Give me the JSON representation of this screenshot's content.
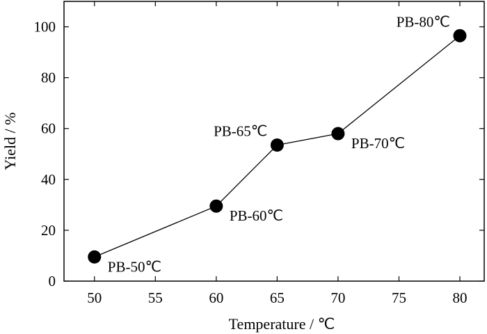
{
  "chart_data": {
    "type": "line",
    "xlabel": "Temperature / ℃",
    "ylabel": "Yield / %",
    "xlim": [
      47.5,
      82
    ],
    "ylim": [
      0,
      110
    ],
    "xticks": [
      50,
      55,
      60,
      65,
      70,
      75,
      80
    ],
    "yticks": [
      0,
      20,
      40,
      60,
      80,
      100
    ],
    "grid": false,
    "series": [
      {
        "x": [
          50,
          60,
          65,
          70,
          80
        ],
        "y": [
          9.5,
          29.5,
          53.5,
          58,
          96.5
        ],
        "labels": [
          "PB-50℃",
          "PB-60℃",
          "PB-65℃",
          "PB-70℃",
          "PB-80℃"
        ],
        "label_positions": [
          "below-right",
          "below-right",
          "above-left",
          "below-right",
          "above-left"
        ],
        "marker": "filled-circle",
        "color": "#000000"
      }
    ]
  }
}
